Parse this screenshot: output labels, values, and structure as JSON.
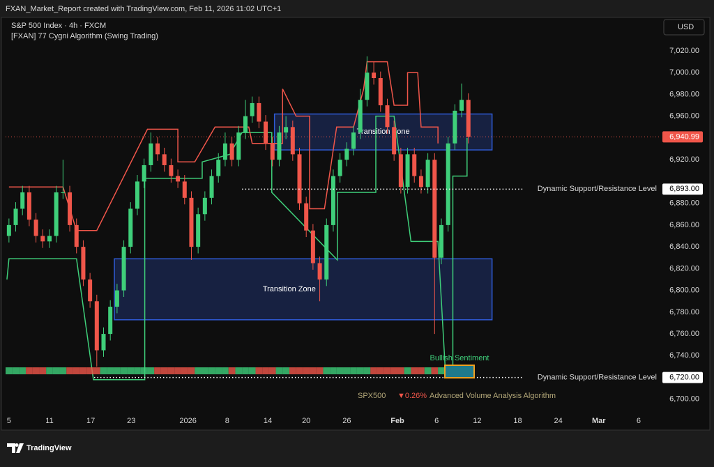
{
  "header": {
    "credit": "FXAN_Market_Report created with TradingView.com, Feb 11, 2026 11:02 UTC+1",
    "symbol": "S&P 500 Index · 4h · FXCM",
    "indicator": "[FXAN] 77 Cygni Algorithm (Swing Trading)",
    "currency": "USD"
  },
  "footer": {
    "logo": "TradingView"
  },
  "chart_data": {
    "type": "candlestick",
    "up_color": "#3fcf7a",
    "down_color": "#f0564a",
    "grid": false,
    "xlim": [
      -0.5,
      96.2
    ],
    "ylim": [
      6689,
      7047.5
    ],
    "xticks": [
      {
        "value": 0,
        "label": "5"
      },
      {
        "value": 6,
        "label": "11"
      },
      {
        "value": 12.1,
        "label": "17"
      },
      {
        "value": 18.1,
        "label": "23"
      },
      {
        "value": 26.5,
        "label": "2026"
      },
      {
        "value": 32.3,
        "label": "8"
      },
      {
        "value": 38.3,
        "label": "14"
      },
      {
        "value": 44,
        "label": "20"
      },
      {
        "value": 50,
        "label": "26"
      },
      {
        "value": 57.5,
        "label": "Feb"
      },
      {
        "value": 63.3,
        "label": "6"
      },
      {
        "value": 69.3,
        "label": "12"
      },
      {
        "value": 75.3,
        "label": "18"
      },
      {
        "value": 81.3,
        "label": "24"
      },
      {
        "value": 87.3,
        "label": "Mar"
      },
      {
        "value": 93.2,
        "label": "6"
      }
    ],
    "yticks": [
      {
        "value": 7020,
        "label": "7,020.00"
      },
      {
        "value": 7000,
        "label": "7,000.00"
      },
      {
        "value": 6980,
        "label": "6,980.00"
      },
      {
        "value": 6960,
        "label": "6,960.00"
      },
      {
        "value": 6920,
        "label": "6,920.00"
      },
      {
        "value": 6880,
        "label": "6,880.00"
      },
      {
        "value": 6860,
        "label": "6,860.00"
      },
      {
        "value": 6840,
        "label": "6,840.00"
      },
      {
        "value": 6820,
        "label": "6,820.00"
      },
      {
        "value": 6800,
        "label": "6,800.00"
      },
      {
        "value": 6780,
        "label": "6,780.00"
      },
      {
        "value": 6760,
        "label": "6,760.00"
      },
      {
        "value": 6740,
        "label": "6,740.00"
      },
      {
        "value": 6700,
        "label": "6,700.00"
      }
    ],
    "x": [
      0,
      1,
      2,
      3,
      4,
      5,
      6,
      7,
      8,
      9,
      10,
      11,
      12,
      13,
      14,
      15,
      16,
      17,
      18,
      19,
      20,
      21,
      22,
      23,
      24,
      25,
      26,
      27,
      28,
      29,
      30,
      31,
      32,
      33,
      34,
      35,
      36,
      37,
      38,
      39,
      40,
      41,
      42,
      43,
      44,
      45,
      46,
      47,
      48,
      49,
      50,
      51,
      52,
      53,
      54,
      55,
      56,
      57,
      58,
      59,
      60,
      61,
      62,
      63,
      64,
      65,
      66,
      67,
      68
    ],
    "open": [
      6850,
      6860,
      6875,
      6890,
      6865,
      6850,
      6845,
      6850,
      6890,
      6890,
      6860,
      6840,
      6810,
      6790,
      6745,
      6760,
      6785,
      6800,
      6840,
      6875,
      6900,
      6915,
      6935,
      6925,
      6915,
      6905,
      6900,
      6885,
      6840,
      6870,
      6885,
      6905,
      6920,
      6935,
      6920,
      6945,
      6960,
      6972,
      6955,
      6935,
      6920,
      6945,
      6950,
      6925,
      6880,
      6855,
      6825,
      6810,
      6860,
      6905,
      6920,
      6930,
      6945,
      6975,
      7000,
      6995,
      6970,
      6950,
      6925,
      6895,
      6925,
      6905,
      6895,
      6920,
      6830,
      6860,
      6935,
      6965,
      6975
    ],
    "high": [
      6866,
      6881,
      6896,
      6896,
      6871,
      6856,
      6856,
      6896,
      6920,
      6896,
      6866,
      6846,
      6816,
      6796,
      6766,
      6791,
      6806,
      6846,
      6881,
      6906,
      6921,
      6945,
      6941,
      6931,
      6921,
      6911,
      6906,
      6891,
      6876,
      6891,
      6911,
      6926,
      6945,
      6941,
      6951,
      6975,
      6978,
      6978,
      6961,
      6941,
      6951,
      6960,
      6956,
      6931,
      6886,
      6861,
      6831,
      6866,
      6911,
      6926,
      6936,
      6951,
      6985,
      7015,
      7010,
      7001,
      6976,
      6956,
      6931,
      6931,
      6931,
      6911,
      6926,
      6926,
      6866,
      6941,
      6971,
      6990,
      6981
    ],
    "low": [
      6844,
      6854,
      6869,
      6859,
      6844,
      6839,
      6839,
      6844,
      6884,
      6854,
      6834,
      6804,
      6784,
      6730,
      6739,
      6754,
      6779,
      6794,
      6834,
      6869,
      6894,
      6909,
      6919,
      6909,
      6899,
      6894,
      6879,
      6828,
      6834,
      6864,
      6879,
      6899,
      6914,
      6914,
      6914,
      6939,
      6954,
      6949,
      6929,
      6914,
      6914,
      6939,
      6919,
      6874,
      6849,
      6819,
      6790,
      6804,
      6854,
      6899,
      6914,
      6924,
      6939,
      6969,
      6989,
      6964,
      6944,
      6919,
      6889,
      6889,
      6899,
      6889,
      6889,
      6760,
      6824,
      6854,
      6929,
      6959,
      6935
    ],
    "close": [
      6860,
      6875,
      6890,
      6865,
      6850,
      6845,
      6850,
      6890,
      6890,
      6860,
      6840,
      6810,
      6790,
      6745,
      6760,
      6785,
      6800,
      6840,
      6875,
      6900,
      6915,
      6935,
      6925,
      6915,
      6905,
      6900,
      6885,
      6840,
      6870,
      6885,
      6905,
      6920,
      6935,
      6920,
      6945,
      6960,
      6972,
      6955,
      6935,
      6920,
      6945,
      6950,
      6925,
      6880,
      6855,
      6825,
      6810,
      6860,
      6905,
      6920,
      6930,
      6945,
      6975,
      7000,
      6995,
      6970,
      6950,
      6925,
      6895,
      6925,
      6905,
      6895,
      6920,
      6830,
      6860,
      6935,
      6965,
      6975,
      6940.99
    ],
    "trail_lines": [
      {
        "color": "#3fcf7a",
        "x": [
          -0.3,
          0,
          10,
          12.5,
          20.1,
          20.1,
          28.6,
          28.6,
          32.7,
          34.5,
          38.9,
          38.9,
          48.6,
          48.6,
          54.3,
          54.3,
          57,
          59.5,
          63.5,
          64.6,
          65.7,
          65.7,
          67.8,
          67.8
        ],
        "values": [
          6810,
          6829,
          6829,
          6718,
          6718,
          6903,
          6903,
          6918,
          6925,
          6945,
          6945,
          6890,
          6828,
          6890,
          6890,
          6960,
          6960,
          6845,
          6845,
          6725,
          6725,
          6905,
          6905,
          6940
        ]
      },
      {
        "color": "#f0564a",
        "x": [
          0,
          8,
          10,
          13,
          20.5,
          25,
          25,
          27.5,
          30.5,
          35.5,
          36,
          40.5,
          40.5,
          42.5,
          44.5,
          44.5,
          46.7,
          48.5,
          51,
          52.5,
          53,
          56,
          57,
          59,
          59,
          60.5,
          61,
          63.5,
          63.5
        ],
        "values": [
          6895,
          6895,
          6855,
          6855,
          6948,
          6948,
          6918,
          6918,
          6950,
          6950,
          6935,
          6935,
          6985,
          6960,
          6960,
          6875,
          6875,
          6950,
          6950,
          6985,
          7010,
          7010,
          6970,
          6970,
          7000,
          7000,
          6950,
          6950,
          6935
        ]
      }
    ],
    "zones": [
      {
        "label": "Transition Zone",
        "x": [
          39.3,
          71.5
        ],
        "y": [
          6929,
          6962
        ]
      },
      {
        "label": "Transition Zone",
        "x": [
          15.6,
          71.5
        ],
        "y": [
          6773,
          6829
        ]
      }
    ],
    "levels": [
      {
        "text": "Dynamic Support/Resistance Level",
        "value": 6893,
        "label": "6,893.00",
        "x": [
          34.5,
          76.1
        ]
      },
      {
        "text": "Dynamic Support/Resistance Level",
        "value": 6720,
        "label": "6,720.00",
        "x": [
          12.6,
          76.1
        ]
      }
    ],
    "last_price": {
      "value": 6940.99,
      "label": "6,940.99"
    },
    "sentiment": "Bullish Sentiment",
    "ticker": "SPX500",
    "change": "▼0.26%",
    "volume_title": "Advanced Volume Analysis Algorithm"
  }
}
